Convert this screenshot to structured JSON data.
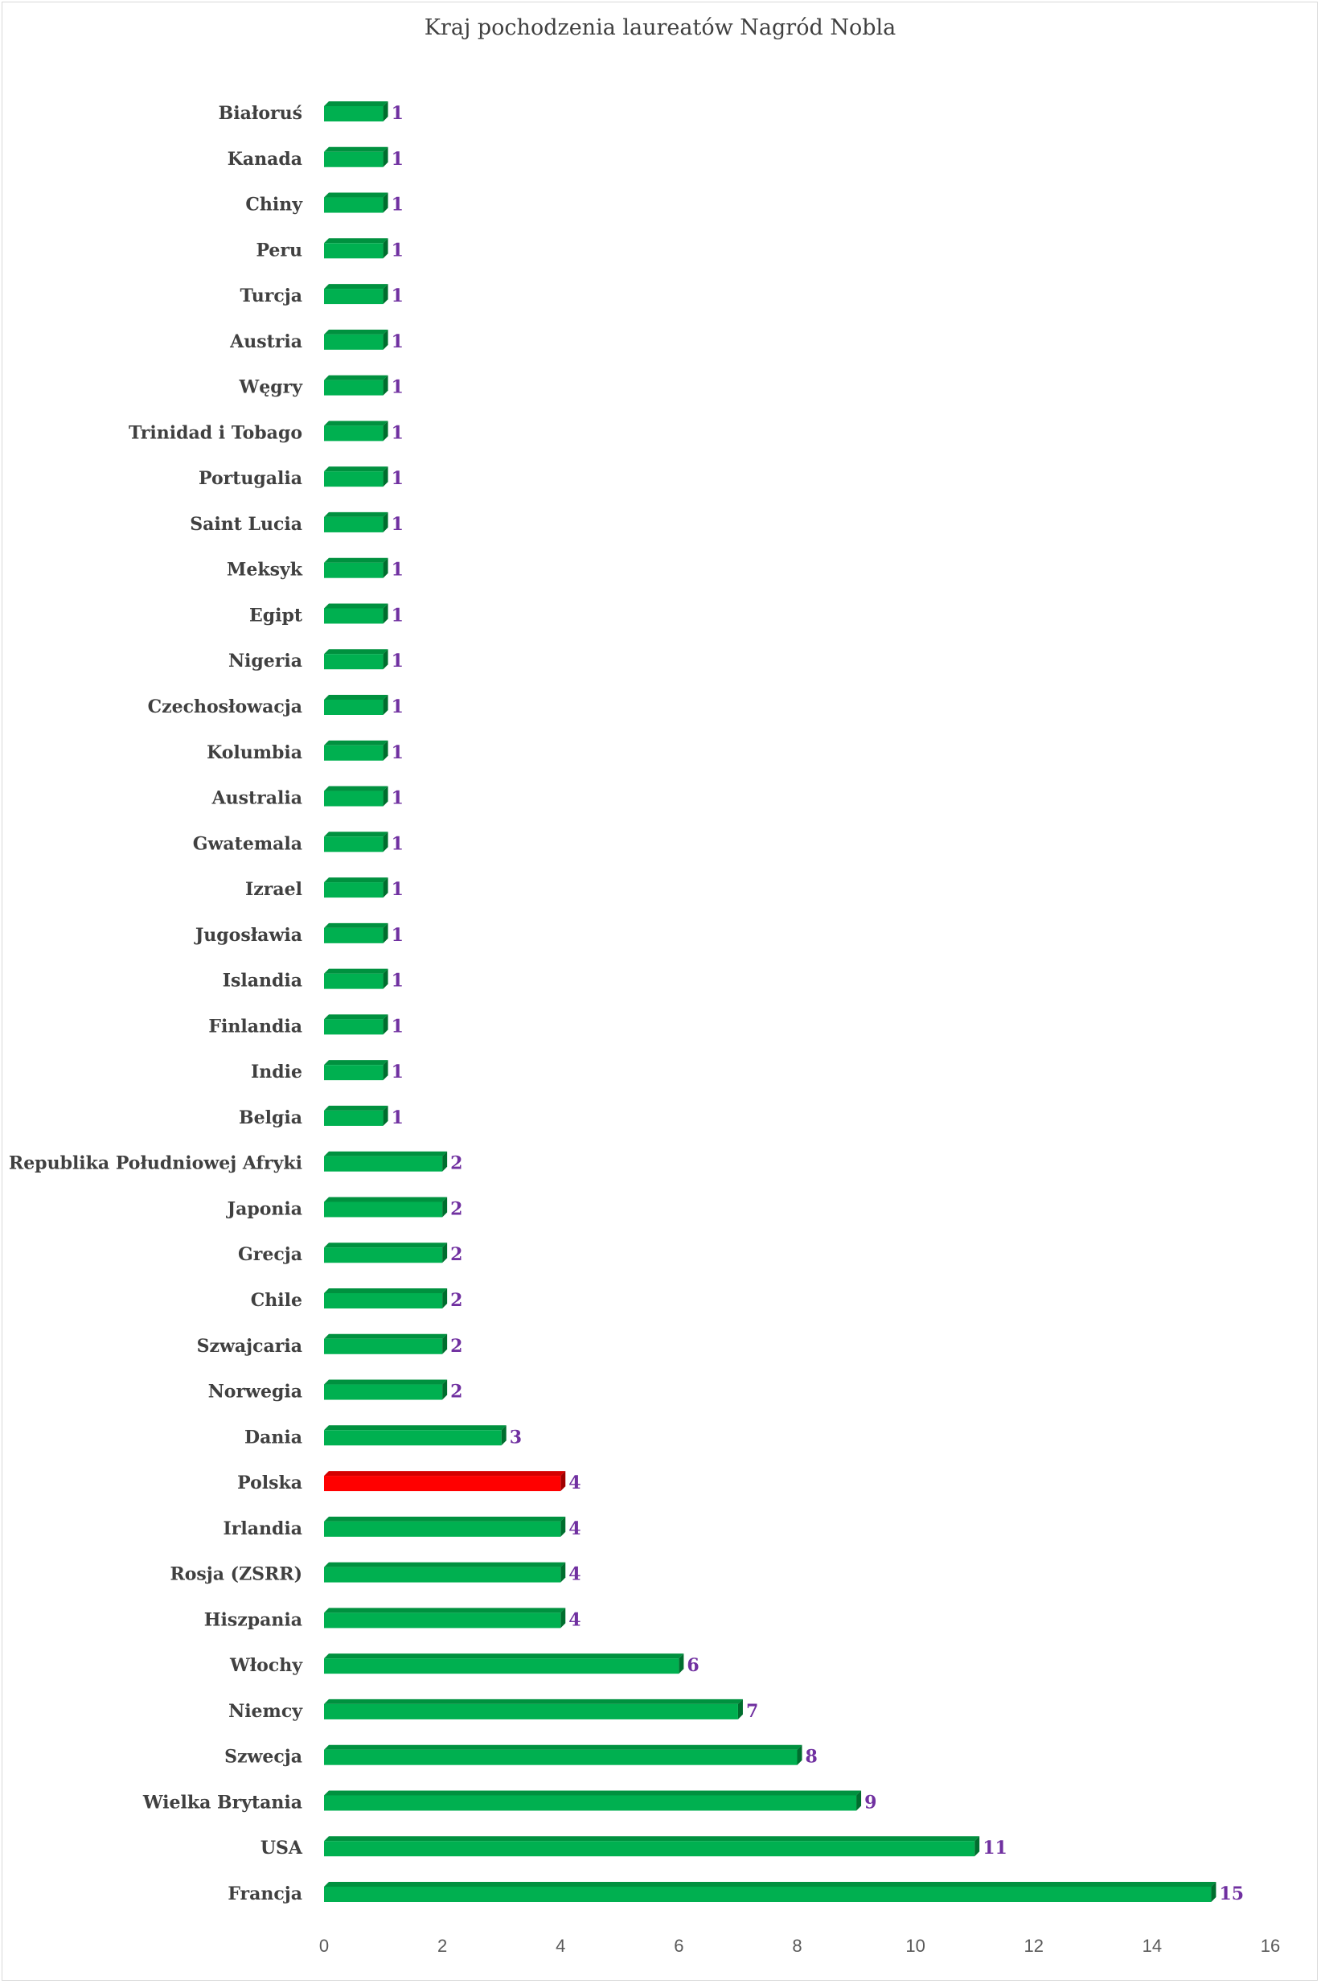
{
  "colors": {
    "bar": "#00b050",
    "bar_top": "#00913f",
    "bar_side": "#006e2e",
    "highlight": "#ff0000",
    "highlight_top": "#d40000",
    "highlight_side": "#a00000",
    "value_label": "#7030a0",
    "axis_text": "#595959"
  },
  "chart_data": {
    "type": "bar",
    "orientation": "horizontal",
    "style": "3d",
    "title": "Kraj pochodzenia laureatów Nagród Nobla",
    "xlabel": "",
    "ylabel": "",
    "xlim": [
      0,
      16
    ],
    "xticks": [
      0,
      2,
      4,
      6,
      8,
      10,
      12,
      14,
      16
    ],
    "grid": false,
    "legend": "none",
    "highlight_category": "Polska",
    "categories": [
      "Białoruś",
      "Kanada",
      "Chiny",
      "Peru",
      "Turcja",
      "Austria",
      "Węgry",
      "Trinidad i Tobago",
      "Portugalia",
      "Saint Lucia",
      "Meksyk",
      "Egipt",
      "Nigeria",
      "Czechosłowacja",
      "Kolumbia",
      "Australia",
      "Gwatemala",
      "Izrael",
      "Jugosławia",
      "Islandia",
      "Finlandia",
      "Indie",
      "Belgia",
      "Republika Południowej Afryki",
      "Japonia",
      "Grecja",
      "Chile",
      "Szwajcaria",
      "Norwegia",
      "Dania",
      "Polska",
      "Irlandia",
      "Rosja (ZSRR)",
      "Hiszpania",
      "Włochy",
      "Niemcy",
      "Szwecja",
      "Wielka Brytania",
      "USA",
      "Francja"
    ],
    "values": [
      1,
      1,
      1,
      1,
      1,
      1,
      1,
      1,
      1,
      1,
      1,
      1,
      1,
      1,
      1,
      1,
      1,
      1,
      1,
      1,
      1,
      1,
      1,
      2,
      2,
      2,
      2,
      2,
      2,
      3,
      4,
      4,
      4,
      4,
      6,
      7,
      8,
      9,
      11,
      15
    ],
    "data_labels": [
      "1",
      "1",
      "1",
      "1",
      "1",
      "1",
      "1",
      "1",
      "1",
      "1",
      "1",
      "1",
      "1",
      "1",
      "1",
      "1",
      "1",
      "1",
      "1",
      "1",
      "1",
      "1",
      "1",
      "2",
      "2",
      "2",
      "2",
      "2",
      "2",
      "3",
      "4",
      "4",
      "4",
      "4",
      "6",
      "7",
      "8",
      "9",
      "11",
      "15"
    ]
  }
}
